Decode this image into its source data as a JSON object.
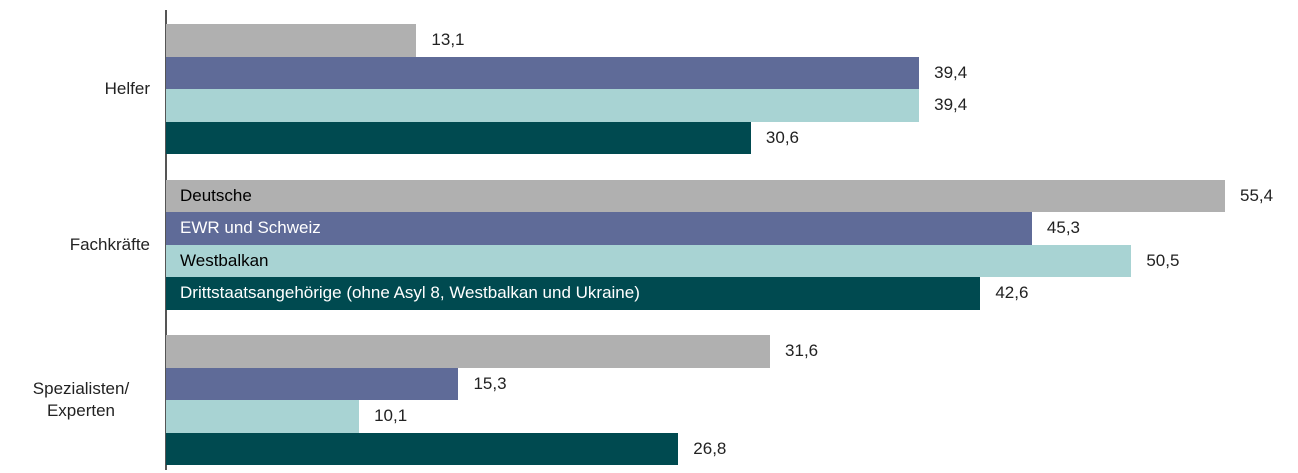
{
  "chart_data": {
    "type": "bar",
    "orientation": "horizontal",
    "categories": [
      "Helfer",
      "Fachkräfte",
      "Spezialisten/ Experten"
    ],
    "series": [
      {
        "name": "Deutsche",
        "color": "#b0b0b0",
        "label_color": "#000000",
        "values": [
          13.1,
          55.4,
          31.6
        ],
        "value_labels": [
          "13,1",
          "55,4",
          "31,6"
        ]
      },
      {
        "name": "EWR und Schweiz",
        "color": "#5f6b98",
        "label_color": "#ffffff",
        "values": [
          39.4,
          45.3,
          15.3
        ],
        "value_labels": [
          "39,4",
          "45,3",
          "15,3"
        ]
      },
      {
        "name": "Westbalkan",
        "color": "#a8d3d3",
        "label_color": "#000000",
        "values": [
          39.4,
          50.5,
          10.1
        ],
        "value_labels": [
          "39,4",
          "50,5",
          "10,1"
        ]
      },
      {
        "name": "Drittstaatsangehörige (ohne Asyl 8, Westbalkan und Ukraine)",
        "color": "#004a50",
        "label_color": "#ffffff",
        "values": [
          30.6,
          42.6,
          26.8
        ],
        "value_labels": [
          "30,6",
          "42,6",
          "26,8"
        ]
      }
    ],
    "legend_position": "inside-bars"
  }
}
